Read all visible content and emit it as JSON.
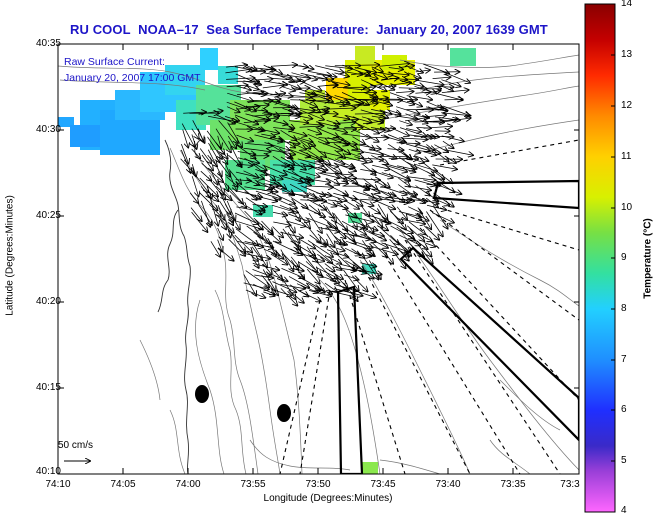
{
  "title": {
    "source": "RU COOL",
    "satellite": "NOAA–17",
    "product": "Sea Surface Temperature:",
    "datetime": "January 20, 2007 1639 GMT"
  },
  "overlay": {
    "label": "Raw Surface Current:",
    "datetime": "January 20, 2007 17:00 GMT"
  },
  "axes": {
    "xlabel": "Longitude (Degrees:Minutes)",
    "ylabel": "Latitude (Degrees:Minutes)",
    "xticks": [
      "74:10",
      "74:05",
      "74:00",
      "73:55",
      "73:50",
      "73:45",
      "73:40",
      "73:35",
      "73:3"
    ],
    "yticks": [
      "40:35",
      "40:30",
      "40:25",
      "40:20",
      "40:15",
      "40:10"
    ]
  },
  "colorbar": {
    "label": "Temperature (°C)",
    "ticks": [
      "14",
      "13",
      "12",
      "11",
      "10",
      "9",
      "8",
      "7",
      "6",
      "5",
      "4"
    ],
    "min": 4,
    "max": 14,
    "colors": [
      "#ff66ff",
      "#7b2bd0",
      "#2222ff",
      "#1f8fff",
      "#22d0ff",
      "#33e0a0",
      "#77e044",
      "#d8f000",
      "#ffd000",
      "#ff8a00",
      "#ff2a00",
      "#c40000",
      "#8a0000"
    ]
  },
  "scale": {
    "label": "50 cm/s"
  },
  "chart_data": {
    "type": "heatmap",
    "title": "RU COOL  NOAA–17  Sea Surface Temperature:  January 20, 2007 1639 GMT",
    "xlabel": "Longitude (Degrees:Minutes)",
    "ylabel": "Latitude (Degrees:Minutes)",
    "xlim": [
      "74:10",
      "73:30"
    ],
    "ylim": [
      "40:10",
      "40:35"
    ],
    "colorbar_range": [
      4,
      14
    ],
    "colorbar_label": "Temperature (°C)",
    "overlay": "Raw Surface Current: January 20, 2007 17:00 GMT",
    "vector_scale": "50 cm/s"
  }
}
